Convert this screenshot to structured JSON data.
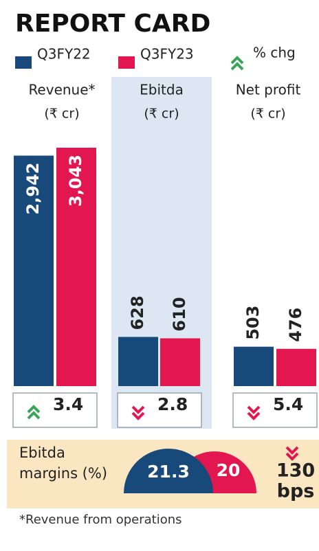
{
  "chart_data": {
    "type": "bar",
    "title": "REPORT CARD",
    "unit": "(₹ cr)",
    "categories": [
      "Revenue*",
      "Ebitda",
      "Net profit"
    ],
    "series": [
      {
        "name": "Q3FY22",
        "color": "#17497a",
        "values": [
          2942,
          628,
          503
        ],
        "value_labels": [
          "2,942",
          "628",
          "503"
        ]
      },
      {
        "name": "Q3FY23",
        "color": "#e3174f",
        "values": [
          3043,
          610,
          476
        ],
        "value_labels": [
          "3,043",
          "610",
          "476"
        ]
      }
    ],
    "change_name": "% chg",
    "changes": [
      {
        "value": 3.4,
        "direction": "up"
      },
      {
        "value": 2.8,
        "direction": "down"
      },
      {
        "value": 5.4,
        "direction": "down"
      }
    ],
    "margins": {
      "label": "Ebitda margins (%)",
      "values": [
        21.3,
        20
      ],
      "change": {
        "value": 130,
        "unit": "bps",
        "direction": "down"
      }
    },
    "footnote": "*Revenue from operations"
  }
}
